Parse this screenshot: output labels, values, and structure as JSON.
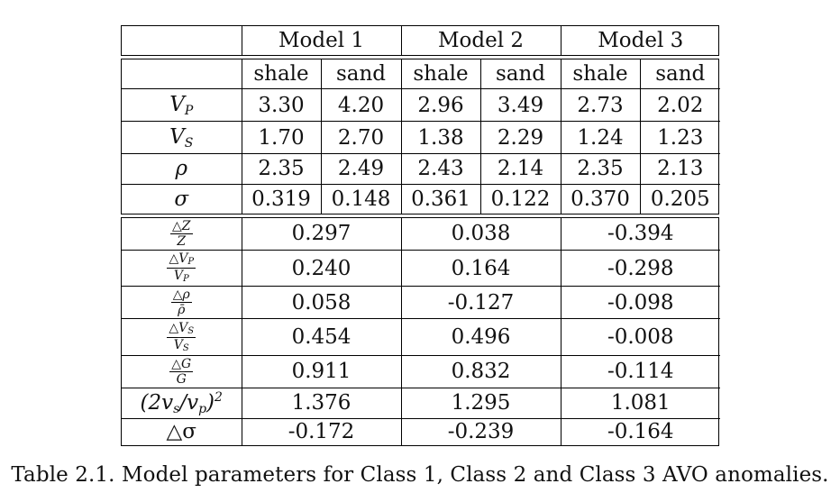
{
  "table": {
    "models": [
      "Model 1",
      "Model 2",
      "Model 3"
    ],
    "subheaders": [
      "shale",
      "sand",
      "shale",
      "sand",
      "shale",
      "sand"
    ],
    "property_rows": [
      {
        "symbol": "V",
        "sub": "P",
        "values": [
          "3.30",
          "4.20",
          "2.96",
          "3.49",
          "2.73",
          "2.02"
        ]
      },
      {
        "symbol": "V",
        "sub": "S",
        "values": [
          "1.70",
          "2.70",
          "1.38",
          "2.29",
          "1.24",
          "1.23"
        ]
      },
      {
        "symbol": "ρ",
        "sub": "",
        "values": [
          "2.35",
          "2.49",
          "2.43",
          "2.14",
          "2.35",
          "2.13"
        ]
      },
      {
        "symbol": "σ",
        "sub": "",
        "values": [
          "0.319",
          "0.148",
          "0.361",
          "0.122",
          "0.370",
          "0.205"
        ]
      }
    ],
    "contrast_rows": [
      {
        "num": "△Z",
        "den": "Z̄",
        "values": [
          "0.297",
          "0.038",
          "-0.394"
        ]
      },
      {
        "num": "△V",
        "num_sub": "P",
        "den": "V̄",
        "den_sub": "P",
        "values": [
          "0.240",
          "0.164",
          "-0.298"
        ]
      },
      {
        "num": "△ρ",
        "den": "ρ̄",
        "values": [
          "0.058",
          "-0.127",
          "-0.098"
        ]
      },
      {
        "num": "△V",
        "num_sub": "S",
        "den": "V̄",
        "den_sub": "S",
        "values": [
          "0.454",
          "0.496",
          "-0.008"
        ]
      },
      {
        "num": "△G",
        "den": "Ḡ",
        "values": [
          "0.911",
          "0.832",
          "-0.114"
        ]
      }
    ],
    "ratio_row": {
      "label_main": "(2v",
      "label_sub1": "s",
      "label_mid": "/v",
      "label_sub2": "p",
      "label_end": ")",
      "label_sup": "2",
      "values": [
        "1.376",
        "1.295",
        "1.081"
      ]
    },
    "delta_sigma_row": {
      "label": "△σ",
      "values": [
        "-0.172",
        "-0.239",
        "-0.164"
      ]
    }
  },
  "caption": "Table 2.1. Model parameters for Class 1, Class 2 and Class 3 AVO anomalies."
}
